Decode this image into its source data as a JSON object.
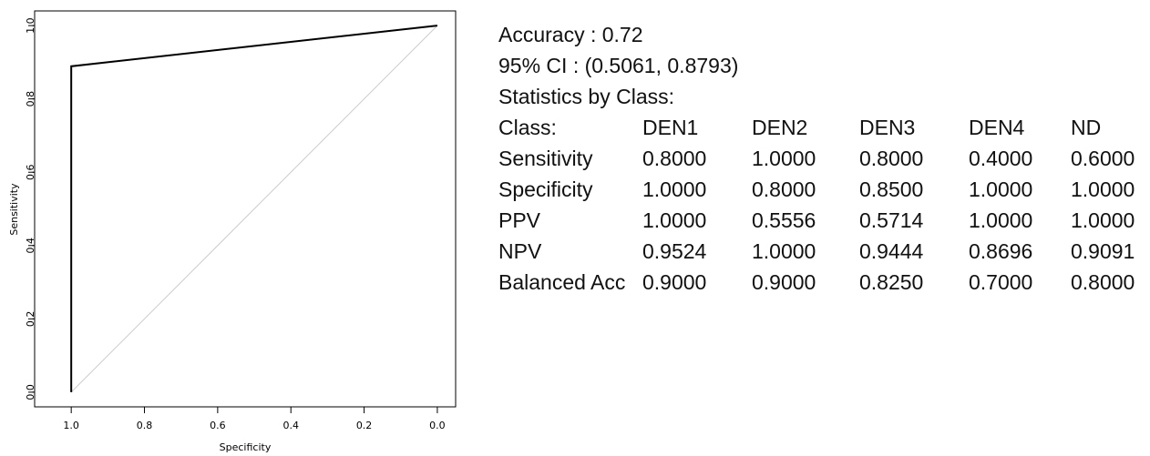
{
  "chart_data": {
    "type": "line",
    "x_label": "Specificity",
    "y_label": "Sensitivity",
    "xlim": [
      1.1,
      -0.05
    ],
    "ylim": [
      -0.04,
      1.04
    ],
    "xticks": [
      {
        "value": 1,
        "label": "1.0"
      },
      0.8,
      0.6,
      0.4,
      0.2,
      {
        "value": 0,
        "label": "0.0"
      }
    ],
    "yticks": [
      {
        "value": 0,
        "label": "0.0"
      },
      0.2,
      0.4,
      0.6,
      0.8,
      {
        "value": 1,
        "label": "1.0"
      }
    ],
    "series": [
      {
        "color": "#cccccc",
        "x": [
          1,
          0
        ],
        "values": [
          0,
          1
        ]
      },
      {
        "color": "#000000",
        "x": [
          1,
          1,
          0
        ],
        "values": [
          0,
          0.889,
          1
        ]
      }
    ]
  },
  "stats": {
    "lines": [
      "Accuracy : 0.72",
      "95% CI : (0.5061, 0.8793)",
      "Statistics by Class:"
    ],
    "table": {
      "header": [
        "Class:",
        "DEN1",
        "DEN2",
        "DEN3",
        "DEN4",
        "ND"
      ],
      "rows": [
        [
          "Sensitivity",
          "0.8000",
          "1.0000",
          "0.8000",
          "0.4000",
          "0.6000"
        ],
        [
          "Specificity",
          "1.0000",
          "0.8000",
          "0.8500",
          "1.0000",
          "1.0000"
        ],
        [
          "PPV",
          "1.0000",
          "0.5556",
          "0.5714",
          "1.0000",
          "1.0000"
        ],
        [
          "NPV",
          "0.9524",
          "1.0000",
          "0.9444",
          "0.8696",
          "0.9091"
        ],
        [
          "Balanced Acc",
          "0.9000",
          "0.9000",
          "0.8250",
          "0.7000",
          "0.8000"
        ]
      ]
    }
  }
}
